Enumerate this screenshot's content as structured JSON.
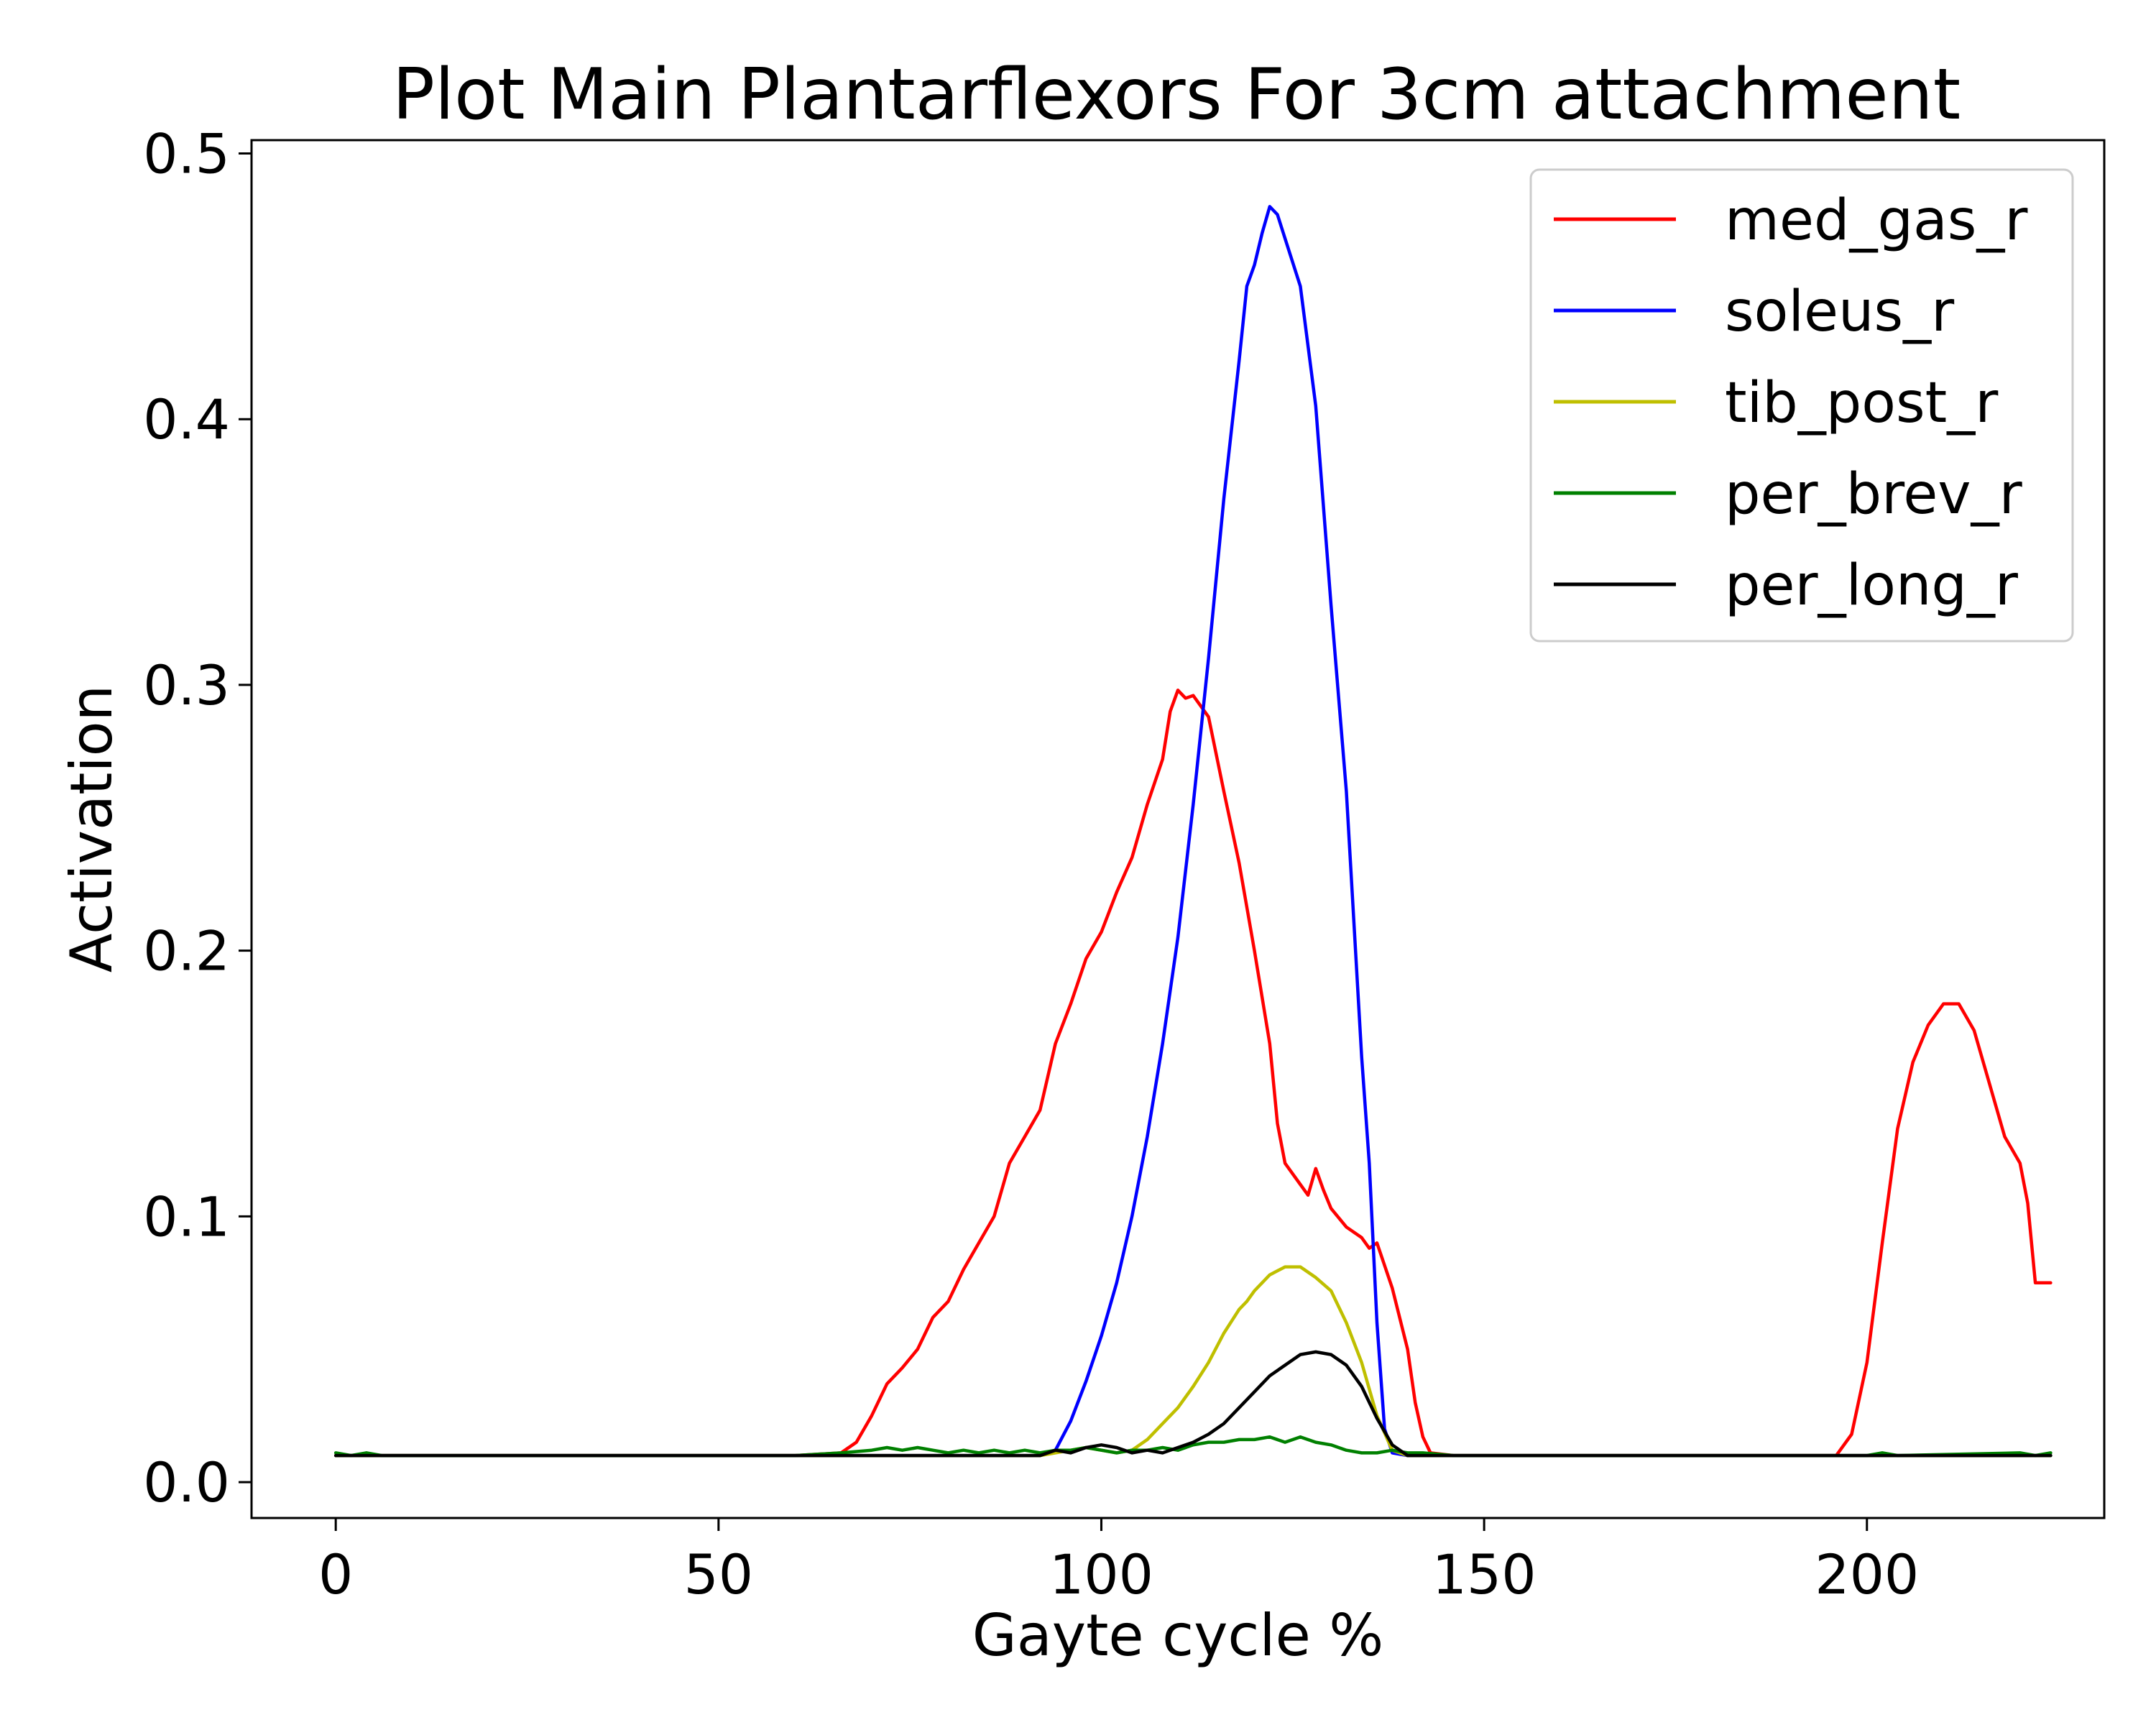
{
  "chart_data": {
    "type": "line",
    "title": "Plot Main Plantarflexors For 3cm attachment",
    "xlabel": "Gayte cycle %",
    "ylabel": "Activation",
    "xlim": [
      -11,
      231
    ],
    "ylim": [
      -0.0135,
      0.505
    ],
    "xticks": [
      0,
      50,
      100,
      150,
      200
    ],
    "xtick_labels": [
      "0",
      "50",
      "100",
      "150",
      "200"
    ],
    "yticks": [
      0.0,
      0.1,
      0.2,
      0.3,
      0.4,
      0.5
    ],
    "ytick_labels": [
      "0.0",
      "0.1",
      "0.2",
      "0.3",
      "0.4",
      "0.5"
    ],
    "grid": false,
    "legend_position": "top-right",
    "series": [
      {
        "name": "med_gas_r",
        "color": "#ff0000",
        "points": [
          [
            0,
            0.01
          ],
          [
            60,
            0.01
          ],
          [
            66,
            0.011
          ],
          [
            68,
            0.015
          ],
          [
            70,
            0.025
          ],
          [
            72,
            0.037
          ],
          [
            74,
            0.043
          ],
          [
            76,
            0.05
          ],
          [
            78,
            0.062
          ],
          [
            80,
            0.068
          ],
          [
            82,
            0.08
          ],
          [
            84,
            0.09
          ],
          [
            86,
            0.1
          ],
          [
            88,
            0.12
          ],
          [
            90,
            0.13
          ],
          [
            92,
            0.14
          ],
          [
            94,
            0.165
          ],
          [
            96,
            0.18
          ],
          [
            98,
            0.197
          ],
          [
            100,
            0.207
          ],
          [
            102,
            0.222
          ],
          [
            104,
            0.235
          ],
          [
            106,
            0.255
          ],
          [
            108,
            0.272
          ],
          [
            109,
            0.29
          ],
          [
            110,
            0.298
          ],
          [
            111,
            0.295
          ],
          [
            112,
            0.296
          ],
          [
            114,
            0.288
          ],
          [
            116,
            0.26
          ],
          [
            118,
            0.233
          ],
          [
            120,
            0.2
          ],
          [
            122,
            0.165
          ],
          [
            123,
            0.135
          ],
          [
            124,
            0.12
          ],
          [
            126,
            0.112
          ],
          [
            127,
            0.108
          ],
          [
            128,
            0.118
          ],
          [
            129,
            0.11
          ],
          [
            130,
            0.103
          ],
          [
            132,
            0.096
          ],
          [
            134,
            0.092
          ],
          [
            135,
            0.088
          ],
          [
            136,
            0.09
          ],
          [
            138,
            0.073
          ],
          [
            140,
            0.05
          ],
          [
            141,
            0.03
          ],
          [
            142,
            0.017
          ],
          [
            143,
            0.011
          ],
          [
            146,
            0.01
          ],
          [
            196,
            0.01
          ],
          [
            198,
            0.018
          ],
          [
            200,
            0.045
          ],
          [
            202,
            0.09
          ],
          [
            204,
            0.133
          ],
          [
            206,
            0.158
          ],
          [
            208,
            0.172
          ],
          [
            210,
            0.18
          ],
          [
            212,
            0.18
          ],
          [
            214,
            0.17
          ],
          [
            216,
            0.15
          ],
          [
            218,
            0.13
          ],
          [
            220,
            0.12
          ],
          [
            221,
            0.105
          ],
          [
            222,
            0.075
          ],
          [
            224,
            0.075
          ]
        ]
      },
      {
        "name": "soleus_r",
        "color": "#0000ff",
        "points": [
          [
            0,
            0.01
          ],
          [
            92,
            0.01
          ],
          [
            94,
            0.012
          ],
          [
            96,
            0.023
          ],
          [
            98,
            0.038
          ],
          [
            100,
            0.055
          ],
          [
            102,
            0.075
          ],
          [
            104,
            0.1
          ],
          [
            106,
            0.13
          ],
          [
            108,
            0.165
          ],
          [
            110,
            0.205
          ],
          [
            112,
            0.255
          ],
          [
            114,
            0.31
          ],
          [
            116,
            0.37
          ],
          [
            118,
            0.422
          ],
          [
            119,
            0.45
          ],
          [
            120,
            0.458
          ],
          [
            121,
            0.47
          ],
          [
            122,
            0.48
          ],
          [
            123,
            0.477
          ],
          [
            124,
            0.468
          ],
          [
            126,
            0.45
          ],
          [
            128,
            0.405
          ],
          [
            130,
            0.33
          ],
          [
            132,
            0.26
          ],
          [
            134,
            0.16
          ],
          [
            135,
            0.12
          ],
          [
            136,
            0.06
          ],
          [
            137,
            0.02
          ],
          [
            138,
            0.011
          ],
          [
            140,
            0.01
          ],
          [
            224,
            0.01
          ]
        ]
      },
      {
        "name": "tib_post_r",
        "color": "#bfbf00",
        "points": [
          [
            0,
            0.01
          ],
          [
            92,
            0.01
          ],
          [
            94,
            0.011
          ],
          [
            96,
            0.012
          ],
          [
            98,
            0.013
          ],
          [
            100,
            0.012
          ],
          [
            102,
            0.011
          ],
          [
            104,
            0.012
          ],
          [
            106,
            0.016
          ],
          [
            108,
            0.022
          ],
          [
            110,
            0.028
          ],
          [
            112,
            0.036
          ],
          [
            114,
            0.045
          ],
          [
            116,
            0.056
          ],
          [
            118,
            0.065
          ],
          [
            119,
            0.068
          ],
          [
            120,
            0.072
          ],
          [
            122,
            0.078
          ],
          [
            124,
            0.081
          ],
          [
            126,
            0.081
          ],
          [
            128,
            0.077
          ],
          [
            130,
            0.072
          ],
          [
            132,
            0.06
          ],
          [
            134,
            0.045
          ],
          [
            136,
            0.025
          ],
          [
            138,
            0.012
          ],
          [
            140,
            0.01
          ],
          [
            224,
            0.01
          ]
        ]
      },
      {
        "name": "per_brev_r",
        "color": "#008000",
        "points": [
          [
            0,
            0.011
          ],
          [
            2,
            0.01
          ],
          [
            4,
            0.011
          ],
          [
            6,
            0.01
          ],
          [
            60,
            0.01
          ],
          [
            66,
            0.011
          ],
          [
            70,
            0.012
          ],
          [
            72,
            0.013
          ],
          [
            74,
            0.012
          ],
          [
            76,
            0.013
          ],
          [
            78,
            0.012
          ],
          [
            80,
            0.011
          ],
          [
            82,
            0.012
          ],
          [
            84,
            0.011
          ],
          [
            86,
            0.012
          ],
          [
            88,
            0.011
          ],
          [
            90,
            0.012
          ],
          [
            92,
            0.011
          ],
          [
            94,
            0.012
          ],
          [
            96,
            0.012
          ],
          [
            98,
            0.013
          ],
          [
            100,
            0.012
          ],
          [
            102,
            0.011
          ],
          [
            104,
            0.012
          ],
          [
            106,
            0.012
          ],
          [
            108,
            0.013
          ],
          [
            110,
            0.012
          ],
          [
            112,
            0.014
          ],
          [
            114,
            0.015
          ],
          [
            116,
            0.015
          ],
          [
            118,
            0.016
          ],
          [
            120,
            0.016
          ],
          [
            122,
            0.017
          ],
          [
            124,
            0.015
          ],
          [
            126,
            0.017
          ],
          [
            128,
            0.015
          ],
          [
            130,
            0.014
          ],
          [
            132,
            0.012
          ],
          [
            134,
            0.011
          ],
          [
            136,
            0.011
          ],
          [
            138,
            0.012
          ],
          [
            140,
            0.011
          ],
          [
            142,
            0.011
          ],
          [
            146,
            0.01
          ],
          [
            200,
            0.01
          ],
          [
            202,
            0.011
          ],
          [
            204,
            0.01
          ],
          [
            220,
            0.011
          ],
          [
            222,
            0.01
          ],
          [
            224,
            0.011
          ]
        ]
      },
      {
        "name": "per_long_r",
        "color": "#000000",
        "points": [
          [
            0,
            0.01
          ],
          [
            92,
            0.01
          ],
          [
            94,
            0.012
          ],
          [
            96,
            0.011
          ],
          [
            98,
            0.013
          ],
          [
            100,
            0.014
          ],
          [
            102,
            0.013
          ],
          [
            104,
            0.011
          ],
          [
            106,
            0.012
          ],
          [
            108,
            0.011
          ],
          [
            110,
            0.013
          ],
          [
            112,
            0.015
          ],
          [
            114,
            0.018
          ],
          [
            116,
            0.022
          ],
          [
            118,
            0.028
          ],
          [
            120,
            0.034
          ],
          [
            122,
            0.04
          ],
          [
            124,
            0.044
          ],
          [
            126,
            0.048
          ],
          [
            128,
            0.049
          ],
          [
            130,
            0.048
          ],
          [
            132,
            0.044
          ],
          [
            134,
            0.036
          ],
          [
            136,
            0.024
          ],
          [
            138,
            0.014
          ],
          [
            140,
            0.01
          ],
          [
            224,
            0.01
          ]
        ]
      }
    ]
  }
}
